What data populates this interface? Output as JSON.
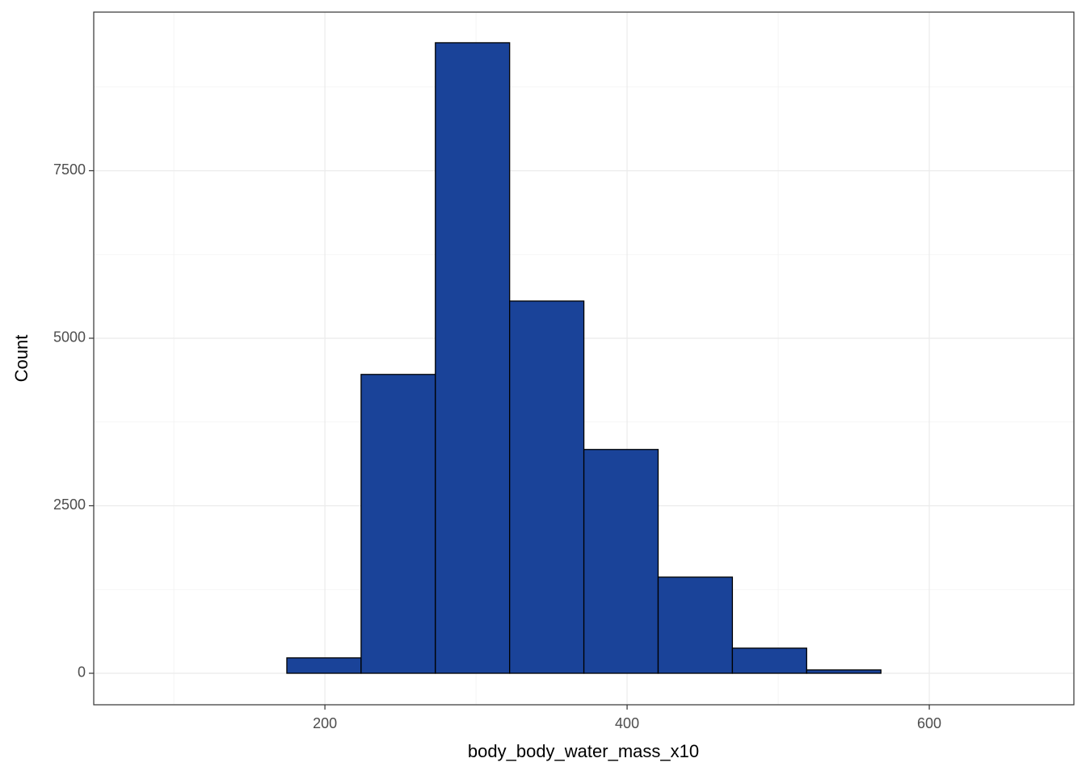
{
  "chart_data": {
    "type": "histogram",
    "x_label": "body_body_water_mass_x10",
    "y_label": "Count",
    "bins": [
      76.5,
      125.65,
      174.8,
      223.95,
      273.1,
      322.25,
      371.4,
      420.55,
      469.7,
      518.85,
      568.0,
      617.15,
      666.3
    ],
    "values": [
      0,
      0,
      230,
      4460,
      9410,
      5555,
      3340,
      1435,
      375,
      50,
      0,
      0
    ],
    "color": "#1a4399",
    "edgecolor": "#000000",
    "xlim": [
      47,
      695.7
    ],
    "ylim": [
      -470,
      9867
    ],
    "xticks": [
      200,
      400,
      600
    ],
    "yticks": [
      0,
      2500,
      5000,
      7500
    ],
    "xminorticks": [
      100,
      300,
      500
    ],
    "yminorticks": [
      1250,
      3750,
      6250,
      8750
    ],
    "grid": true
  }
}
